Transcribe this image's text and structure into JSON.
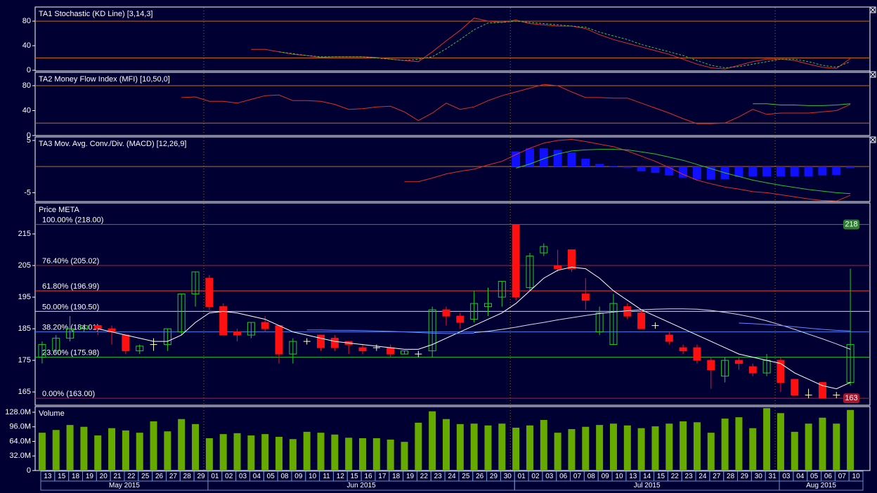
{
  "chart_data": [
    {
      "type": "line",
      "title": "TA1 Stochastic (KD Line) [3,14,3]",
      "ylim": [
        -1.1,
        103
      ],
      "yticks": [
        0,
        40,
        80
      ],
      "reference_lines": [
        20,
        80
      ],
      "series": [
        {
          "color": "#e03020",
          "dashed": false,
          "values": [
            null,
            null,
            null,
            null,
            null,
            null,
            null,
            null,
            null,
            null,
            null,
            null,
            null,
            null,
            null,
            34,
            34,
            30,
            26,
            24,
            21,
            22,
            22,
            22,
            21,
            18,
            16,
            14,
            30,
            48,
            65,
            85,
            80,
            78,
            82,
            76,
            74,
            72,
            72,
            68,
            58,
            50,
            44,
            38,
            32,
            26,
            18,
            10,
            4,
            2,
            8,
            14,
            18,
            18,
            16,
            10,
            5,
            3,
            19
          ]
        },
        {
          "color": "#40c040",
          "dashed": true,
          "values": [
            null,
            null,
            null,
            null,
            null,
            null,
            null,
            null,
            null,
            null,
            null,
            null,
            null,
            null,
            null,
            null,
            null,
            30,
            27,
            24,
            22,
            22,
            22,
            22,
            20,
            18,
            16,
            18,
            22,
            35,
            50,
            66,
            77,
            78,
            80,
            78,
            76,
            74,
            72,
            70,
            62,
            56,
            50,
            42,
            36,
            30,
            24,
            16,
            8,
            4,
            6,
            10,
            14,
            18,
            18,
            14,
            8,
            5,
            14
          ]
        }
      ]
    },
    {
      "type": "line",
      "title": "TA2 Money Flow Index (MFI) [10,50,0]",
      "ylim": [
        0,
        101.4
      ],
      "yticks": [
        0,
        40,
        80
      ],
      "reference_lines": [
        20,
        80
      ],
      "series": [
        {
          "color": "#e03020",
          "dashed": false,
          "values": [
            null,
            null,
            null,
            null,
            null,
            null,
            null,
            null,
            null,
            null,
            61,
            62,
            55,
            55,
            52,
            58,
            64,
            65,
            56,
            56,
            55,
            50,
            42,
            43,
            46,
            47,
            38,
            24,
            36,
            52,
            42,
            46,
            56,
            64,
            70,
            76,
            82,
            80,
            70,
            61,
            61,
            60,
            60,
            52,
            44,
            36,
            27,
            19,
            19,
            20,
            30,
            42,
            34,
            36,
            36,
            36,
            38,
            40,
            50
          ]
        },
        {
          "color": "#40c040",
          "dashed": false,
          "values": [
            null,
            null,
            null,
            null,
            null,
            null,
            null,
            null,
            null,
            null,
            null,
            null,
            null,
            null,
            null,
            null,
            null,
            null,
            null,
            null,
            null,
            null,
            null,
            null,
            null,
            null,
            null,
            null,
            null,
            null,
            null,
            null,
            null,
            null,
            null,
            null,
            null,
            null,
            null,
            null,
            null,
            null,
            null,
            null,
            null,
            null,
            null,
            null,
            null,
            null,
            null,
            51,
            51,
            49,
            49,
            48,
            48,
            49,
            51
          ]
        }
      ]
    },
    {
      "type": "macd",
      "title": "TA3 Mov. Avg. Conv./Div. (MACD) [12,26,9]",
      "ylim": [
        -6.7,
        5.67
      ],
      "yticks": [
        -5,
        5
      ],
      "reference_lines": [
        0
      ],
      "histogram": {
        "color": "#1010ff",
        "values": [
          null,
          null,
          null,
          null,
          null,
          null,
          null,
          null,
          null,
          null,
          null,
          null,
          null,
          null,
          null,
          null,
          null,
          null,
          null,
          null,
          null,
          null,
          null,
          null,
          null,
          null,
          null,
          null,
          null,
          null,
          null,
          null,
          null,
          null,
          2.9,
          3.5,
          3.5,
          3.2,
          2.7,
          1.5,
          0.5,
          0.1,
          -0.2,
          -0.9,
          -1.2,
          -1.7,
          -2.1,
          -2.5,
          -2.5,
          -2.4,
          -2,
          -1.9,
          -1.9,
          -1.9,
          -1.9,
          -1.9,
          -1.7,
          -1.6,
          -0.3
        ]
      },
      "series": [
        {
          "color": "#e03020",
          "dashed": false,
          "values": [
            null,
            null,
            null,
            null,
            null,
            null,
            null,
            null,
            null,
            null,
            null,
            null,
            null,
            null,
            null,
            null,
            null,
            null,
            null,
            null,
            null,
            null,
            null,
            null,
            null,
            null,
            -2.9,
            -2.9,
            -2.2,
            -1.4,
            -0.9,
            -0.5,
            0.3,
            1.0,
            2.3,
            3.5,
            4.5,
            5.0,
            5.2,
            4.8,
            4.3,
            3.8,
            3.0,
            2.0,
            1.0,
            -0.2,
            -1.5,
            -2.6,
            -3.3,
            -3.9,
            -4.3,
            -4.8,
            -5.0,
            -5.4,
            -5.8,
            -6.2,
            -6.5,
            -6.6,
            -5.5
          ]
        },
        {
          "color": "#30c030",
          "dashed": false,
          "values": [
            null,
            null,
            null,
            null,
            null,
            null,
            null,
            null,
            null,
            null,
            null,
            null,
            null,
            null,
            null,
            null,
            null,
            null,
            null,
            null,
            null,
            null,
            null,
            null,
            null,
            null,
            null,
            null,
            null,
            null,
            null,
            null,
            null,
            null,
            -0.3,
            0.5,
            1.5,
            2.4,
            3.0,
            3.2,
            3.3,
            3.3,
            3.2,
            2.8,
            2.4,
            1.8,
            1.2,
            0.4,
            -0.4,
            -1.2,
            -1.9,
            -2.6,
            -3.1,
            -3.6,
            -4.0,
            -4.4,
            -4.7,
            -5.0,
            -5.2
          ]
        }
      ]
    },
    {
      "type": "candlestick",
      "title": "Price META",
      "ylim": [
        160.8,
        224.8
      ],
      "yticks": [
        165,
        175,
        185,
        195,
        205,
        215
      ],
      "up_color": "#22cc22",
      "down_color": "#ff1010",
      "doji_color": "#ffffcc",
      "open": [
        176,
        178,
        182,
        185,
        186,
        185,
        183,
        178,
        180,
        180,
        184,
        196,
        201,
        192,
        184,
        183,
        187,
        186,
        177,
        181,
        183,
        182,
        181,
        179,
        179,
        179,
        177,
        177,
        178,
        191,
        189,
        188,
        192,
        195,
        218,
        198,
        209,
        205,
        210,
        196,
        184,
        180,
        192,
        190,
        186,
        183,
        179,
        179,
        175,
        170,
        175,
        173,
        171,
        175,
        169,
        164,
        168,
        164,
        168
      ],
      "high": [
        181,
        183,
        189,
        186,
        186,
        186,
        183,
        180,
        182,
        185,
        196,
        203,
        202,
        193,
        185,
        187,
        189,
        186,
        182,
        182,
        183,
        183,
        181,
        180,
        180,
        180,
        178,
        178,
        192,
        192,
        190,
        197,
        198,
        200,
        218,
        209,
        212,
        210,
        210,
        201,
        192,
        196,
        193,
        191,
        187,
        184,
        180,
        180,
        176,
        176,
        176,
        174,
        177,
        176,
        169,
        166,
        168,
        165,
        204
      ],
      "low": [
        174,
        177,
        181,
        184,
        183,
        180,
        177,
        177,
        178,
        178,
        183,
        192,
        191,
        183,
        181,
        182,
        184,
        174,
        174,
        180,
        178,
        178,
        177,
        177,
        178,
        176,
        177,
        176,
        176,
        186,
        185,
        187,
        189,
        192,
        194,
        197,
        208,
        203,
        203,
        191,
        183,
        180,
        188,
        185,
        185,
        180,
        177,
        174,
        166,
        168,
        172,
        170,
        170,
        165,
        164,
        163,
        163,
        163,
        167
      ],
      "close": [
        180,
        182,
        185,
        186,
        185,
        184,
        178,
        179.5,
        180,
        185,
        196,
        203,
        192,
        183,
        183,
        187,
        185,
        177,
        181,
        181,
        179,
        179,
        180,
        178,
        179,
        177,
        178,
        177,
        191,
        189,
        187,
        193,
        193,
        200,
        195,
        208,
        211,
        204,
        204,
        194,
        190,
        193,
        189,
        185,
        186,
        181,
        178,
        175,
        172,
        175,
        174,
        171,
        175,
        168,
        164,
        164,
        163,
        164,
        180
      ],
      "lines": [
        {
          "color": "#ffffff",
          "dashed": false,
          "values": [
            null,
            null,
            null,
            null,
            185,
            184,
            183,
            182,
            181,
            181,
            183,
            187,
            190,
            190.5,
            190,
            189,
            188,
            186,
            184,
            183,
            182,
            181,
            180.5,
            180,
            179.5,
            179,
            178.5,
            178.5,
            180,
            182,
            184,
            186,
            188,
            190,
            193,
            197,
            201,
            203.5,
            204.5,
            204,
            201,
            197,
            194,
            191,
            189,
            187,
            185,
            183,
            181,
            179,
            177,
            176,
            175,
            174,
            171,
            169,
            167,
            166,
            168
          ]
        },
        {
          "color": "#d8d8e8",
          "dashed": false,
          "values": [
            null,
            null,
            null,
            null,
            null,
            null,
            null,
            null,
            null,
            null,
            null,
            null,
            null,
            null,
            null,
            null,
            null,
            null,
            null,
            null,
            null,
            null,
            null,
            null,
            null,
            null,
            null,
            null,
            null,
            null,
            null,
            183.8,
            184.2,
            184.8,
            185.5,
            186.3,
            187,
            187.8,
            188.5,
            189.2,
            189.8,
            190.3,
            190.7,
            191,
            191.2,
            191.3,
            191.3,
            191.2,
            190.8,
            190.2,
            189.5,
            188.6,
            187.5,
            186.2,
            184.8,
            183.3,
            181.8,
            180.2,
            178.5
          ]
        },
        {
          "color": "#7080ff",
          "dashed": false,
          "values": [
            null,
            null,
            null,
            null,
            null,
            null,
            null,
            null,
            null,
            null,
            null,
            null,
            null,
            null,
            null,
            null,
            null,
            null,
            null,
            184.6,
            184.6,
            184.5,
            184.5,
            184.4,
            184.3,
            184.2,
            184,
            183.8,
            183.6,
            183.5,
            183.5,
            183.6,
            null,
            null,
            null,
            null,
            null,
            null,
            null,
            null,
            null,
            null,
            null,
            null,
            null,
            null,
            null,
            null,
            null,
            null,
            186.8,
            186.6,
            186.3,
            186,
            185.6,
            185.2,
            184.8,
            184.5,
            184.3
          ]
        }
      ],
      "fib_levels": [
        {
          "label": "100.00% (218.00)",
          "value": 218,
          "color": "#3a8a3a"
        },
        {
          "label": "76.40% (205.02)",
          "value": 205.02,
          "color": "#a02840"
        },
        {
          "label": "61.80% (196.99)",
          "value": 196.99,
          "color": "#ff3838"
        },
        {
          "label": "50.00% (190.50)",
          "value": 190.5,
          "color": "#c8d4e4"
        },
        {
          "label": "38.20% (184.01)",
          "value": 184.01,
          "color": "#3a78e0"
        },
        {
          "label": "23.60% (175.98)",
          "value": 175.98,
          "color": "#38d038"
        },
        {
          "label": "0.00% (163.00)",
          "value": 163,
          "color": "#b02038"
        }
      ],
      "markers": [
        {
          "value": 218,
          "color": "#2e7d32"
        },
        {
          "value": 163,
          "color": "#a01a30"
        }
      ]
    },
    {
      "type": "bar",
      "title": "Volume",
      "color": "#66aa00",
      "ylim": [
        0,
        140300000
      ],
      "yticks": [
        0,
        {
          "value": 32000000,
          "label": "32.0M"
        },
        {
          "value": 64000000,
          "label": "64.0M"
        },
        {
          "value": 96000000,
          "label": "96.0M"
        },
        {
          "value": 128000000,
          "label": "128.0M"
        }
      ],
      "values": [
        83000000,
        89000000,
        100000000,
        96000000,
        77000000,
        93000000,
        88000000,
        83000000,
        108000000,
        86000000,
        113000000,
        102000000,
        71000000,
        80000000,
        82000000,
        77000000,
        80000000,
        74000000,
        69000000,
        85000000,
        83000000,
        79000000,
        72000000,
        71000000,
        71000000,
        68000000,
        63000000,
        105000000,
        130000000,
        113000000,
        102000000,
        103000000,
        99000000,
        103000000,
        94000000,
        99000000,
        111000000,
        83000000,
        91000000,
        96000000,
        100000000,
        103000000,
        99000000,
        93000000,
        97000000,
        103000000,
        108000000,
        106000000,
        83000000,
        114000000,
        117000000,
        93000000,
        137000000,
        126000000,
        85000000,
        103000000,
        116000000,
        103000000,
        133000000
      ],
      "categories": [
        "13",
        "15",
        "18",
        "19",
        "20",
        "21",
        "22",
        "25",
        "26",
        "27",
        "28",
        "29",
        "01",
        "02",
        "03",
        "04",
        "05",
        "08",
        "09",
        "10",
        "11",
        "12",
        "15",
        "16",
        "17",
        "18",
        "19",
        "22",
        "23",
        "24",
        "25",
        "26",
        "29",
        "30",
        "01",
        "02",
        "03",
        "06",
        "07",
        "08",
        "09",
        "10",
        "13",
        "14",
        "15",
        "22",
        "23",
        "24",
        "27",
        "28",
        "29",
        "30",
        "31",
        "03",
        "04",
        "05",
        "06",
        "07",
        "10"
      ],
      "x_groups": [
        {
          "label": "May 2015",
          "count": 12
        },
        {
          "label": "Jun 2015",
          "count": 22
        },
        {
          "label": "Jul 2015",
          "count": 19
        },
        {
          "label": "Aug 2015",
          "count": 6
        }
      ]
    }
  ]
}
